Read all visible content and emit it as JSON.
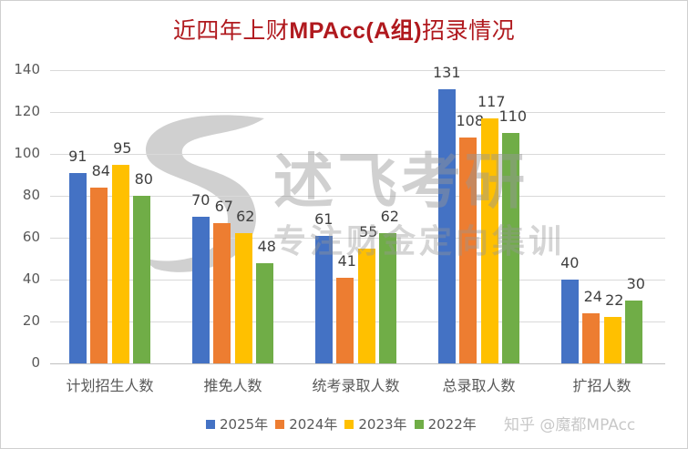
{
  "title": {
    "prefix": "近四年上财",
    "bold": "MPAcc(A组)",
    "suffix": "招录情况"
  },
  "watermark": {
    "brand": "述飞考研",
    "slogan": "专注财金定向集训",
    "logo_icon": "s-logo-icon"
  },
  "credit": "知乎 @魔都MPAcc",
  "colors": {
    "2025": "#4472c4",
    "2024": "#ed7d31",
    "2023": "#ffc000",
    "2022": "#70ad47",
    "title": "#b0191e"
  },
  "legend": [
    {
      "label": "2025年",
      "color": "#4472c4"
    },
    {
      "label": "2024年",
      "color": "#ed7d31"
    },
    {
      "label": "2023年",
      "color": "#ffc000"
    },
    {
      "label": "2022年",
      "color": "#70ad47"
    }
  ],
  "chart_data": {
    "type": "bar",
    "title": "近四年上财MPAcc(A组)招录情况",
    "xlabel": "",
    "ylabel": "",
    "ylim": [
      0,
      140
    ],
    "yticks": [
      0,
      20,
      40,
      60,
      80,
      100,
      120,
      140
    ],
    "grid": true,
    "legend_position": "bottom",
    "categories": [
      "计划招生人数",
      "推免人数",
      "统考录取人数",
      "总录取人数",
      "扩招人数"
    ],
    "series": [
      {
        "name": "2025年",
        "color": "#4472c4",
        "values": [
          91,
          70,
          61,
          131,
          40
        ]
      },
      {
        "name": "2024年",
        "color": "#ed7d31",
        "values": [
          84,
          67,
          41,
          108,
          24
        ]
      },
      {
        "name": "2023年",
        "color": "#ffc000",
        "values": [
          95,
          62,
          55,
          117,
          22
        ]
      },
      {
        "name": "2022年",
        "color": "#70ad47",
        "values": [
          80,
          48,
          62,
          110,
          30
        ]
      }
    ]
  }
}
